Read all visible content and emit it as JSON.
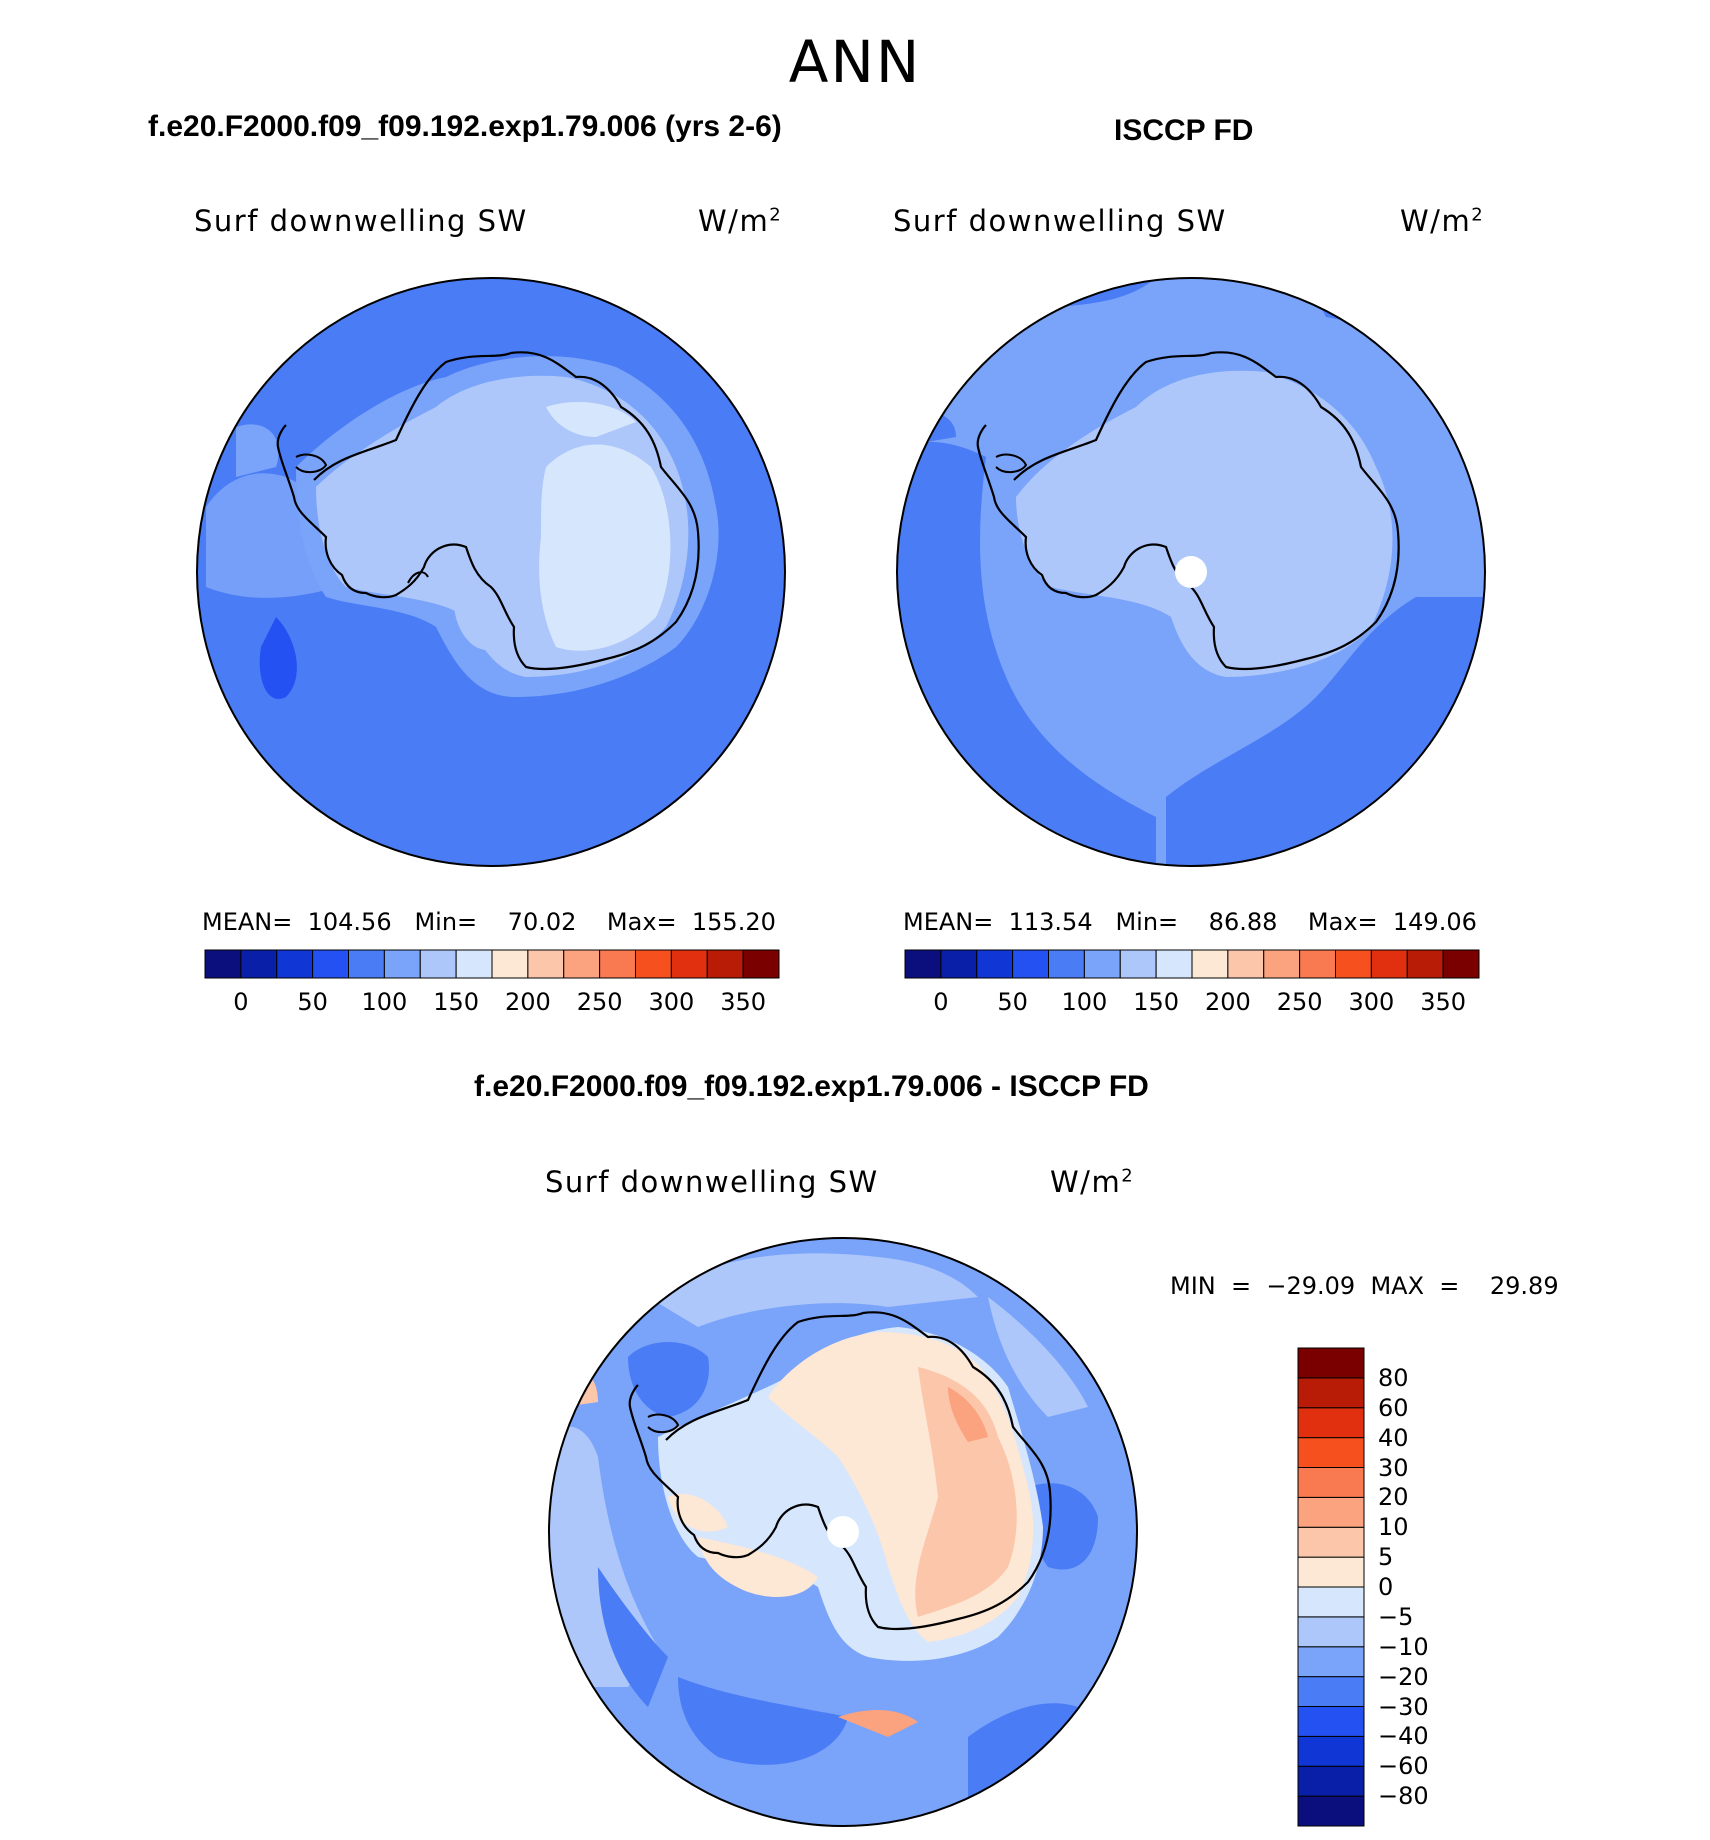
{
  "season": "ANN",
  "panels": [
    {
      "title": "f.e20.F2000.f09_f09.192.exp1.79.006 (yrs 2-6)",
      "variable": "Surf downwelling SW",
      "units": "W/m",
      "units_sup": "2",
      "stats": "MEAN=  104.56   Min=    70.02    Max=  155.20"
    },
    {
      "title": "ISCCP FD",
      "variable": "Surf downwelling SW",
      "units": "W/m",
      "units_sup": "2",
      "stats": "MEAN=  113.54   Min=    86.88    Max=  149.06"
    },
    {
      "title": "f.e20.F2000.f09_f09.192.exp1.79.006 - ISCCP FD",
      "variable": "Surf downwelling SW",
      "units": "W/m",
      "units_sup": "2",
      "stats": "MIN  =  −29.09  MAX  =    29.89"
    }
  ],
  "field_colorbar": {
    "colors": [
      "#0a0f7d",
      "#0a1fa8",
      "#1136d6",
      "#2452f2",
      "#4a7cf5",
      "#7aa3fa",
      "#adc7fb",
      "#d6e6fd",
      "#fde7d5",
      "#fcc6ab",
      "#fba27f",
      "#f97a50",
      "#f5501e",
      "#e03010",
      "#b81c06",
      "#7a0000"
    ],
    "labels": [
      "0",
      "50",
      "100",
      "150",
      "200",
      "250",
      "300",
      "350"
    ]
  },
  "diff_colorbar": {
    "colors": [
      "#0a0f7d",
      "#0a1fa8",
      "#1136d6",
      "#2452f2",
      "#4a7cf5",
      "#7aa3fa",
      "#adc7fb",
      "#d6e6fd",
      "#fde7d5",
      "#fcc6ab",
      "#fba27f",
      "#f97a50",
      "#f5501e",
      "#e03010",
      "#b81c06",
      "#7a0000"
    ],
    "labels": [
      "−80",
      "−60",
      "−40",
      "−30",
      "−20",
      "−10",
      "−5",
      "0",
      "5",
      "10",
      "20",
      "30",
      "40",
      "60",
      "80"
    ]
  }
}
